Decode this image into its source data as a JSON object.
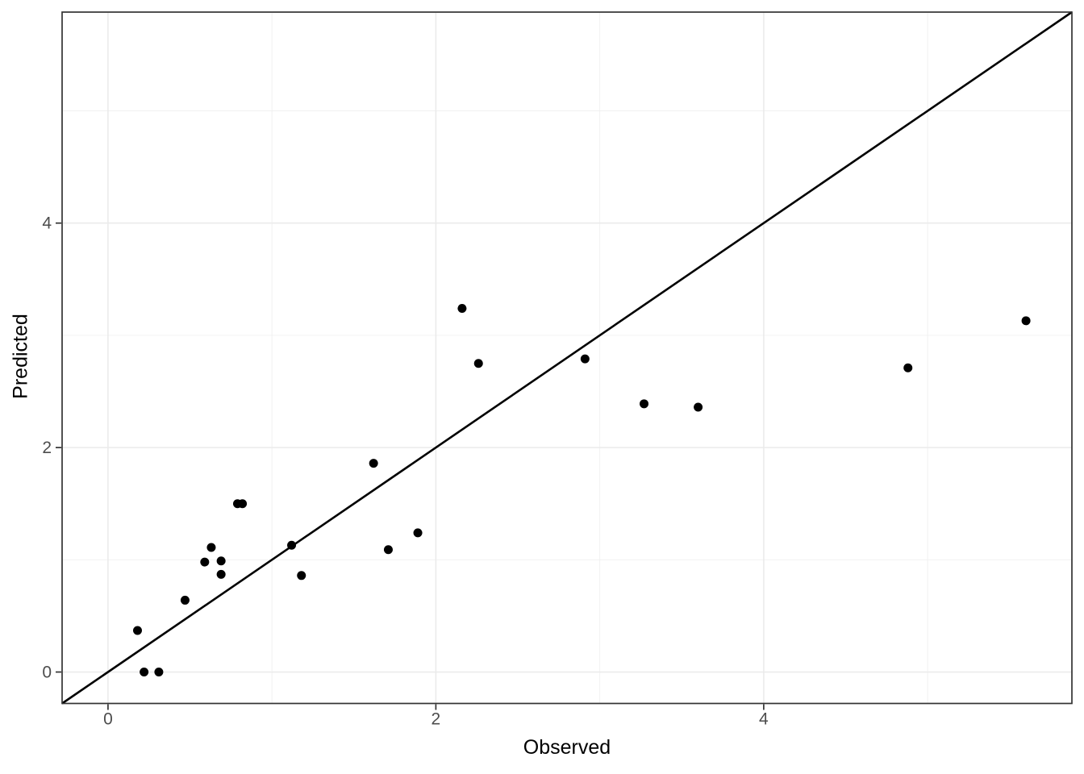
{
  "chart_data": {
    "type": "scatter",
    "title": "",
    "xlabel": "Observed",
    "ylabel": "Predicted",
    "x_ticks": [
      0,
      2,
      4
    ],
    "y_ticks": [
      0,
      2,
      4
    ],
    "x_minor_gridlines": [
      1,
      3,
      5
    ],
    "y_minor_gridlines": [
      1,
      3,
      5
    ],
    "xlim": [
      -0.28,
      5.88
    ],
    "ylim": [
      -0.28,
      5.88
    ],
    "grid": "major and minor, light gray on white",
    "legend_position": "none",
    "reference_line": {
      "kind": "identity",
      "equation": "y = x",
      "span": [
        -0.28,
        5.88
      ]
    },
    "points": [
      [
        0.18,
        0.37
      ],
      [
        0.22,
        0.0
      ],
      [
        0.31,
        0.0
      ],
      [
        0.47,
        0.64
      ],
      [
        0.59,
        0.98
      ],
      [
        0.63,
        1.11
      ],
      [
        0.69,
        0.99
      ],
      [
        0.69,
        0.87
      ],
      [
        0.79,
        1.5
      ],
      [
        0.82,
        1.5
      ],
      [
        1.12,
        1.13
      ],
      [
        1.18,
        0.86
      ],
      [
        1.62,
        1.86
      ],
      [
        1.71,
        1.09
      ],
      [
        1.89,
        1.24
      ],
      [
        2.16,
        3.24
      ],
      [
        2.26,
        2.75
      ],
      [
        2.91,
        2.79
      ],
      [
        3.27,
        2.39
      ],
      [
        3.6,
        2.36
      ],
      [
        4.88,
        2.71
      ],
      [
        5.6,
        3.13
      ]
    ],
    "colors": {
      "point": "#000000",
      "reference_line": "#000000",
      "grid_major": "#ebebeb",
      "grid_minor": "#f0f0f0",
      "panel_border": "#333333",
      "tick_mark": "#333333",
      "tick_label": "#4d4d4d",
      "axis_title": "#000000",
      "background": "#ffffff"
    }
  }
}
